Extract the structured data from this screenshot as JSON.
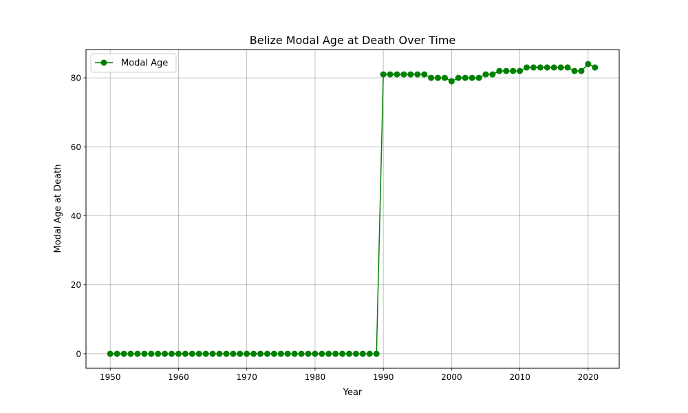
{
  "chart_data": {
    "type": "line",
    "title": "Belize Modal Age at Death Over Time",
    "xlabel": "Year",
    "ylabel": "Modal Age at Death",
    "xlim": [
      1946.45,
      2024.55
    ],
    "ylim": [
      -4.2,
      88.2
    ],
    "xticks": [
      1950,
      1960,
      1970,
      1980,
      1990,
      2000,
      2010,
      2020
    ],
    "yticks": [
      0,
      20,
      40,
      60,
      80
    ],
    "grid": true,
    "legend_position": "top-left",
    "series": [
      {
        "name": "Modal Age",
        "color": "#008000",
        "marker": "circle",
        "x": [
          1950,
          1951,
          1952,
          1953,
          1954,
          1955,
          1956,
          1957,
          1958,
          1959,
          1960,
          1961,
          1962,
          1963,
          1964,
          1965,
          1966,
          1967,
          1968,
          1969,
          1970,
          1971,
          1972,
          1973,
          1974,
          1975,
          1976,
          1977,
          1978,
          1979,
          1980,
          1981,
          1982,
          1983,
          1984,
          1985,
          1986,
          1987,
          1988,
          1989,
          1990,
          1991,
          1992,
          1993,
          1994,
          1995,
          1996,
          1997,
          1998,
          1999,
          2000,
          2001,
          2002,
          2003,
          2004,
          2005,
          2006,
          2007,
          2008,
          2009,
          2010,
          2011,
          2012,
          2013,
          2014,
          2015,
          2016,
          2017,
          2018,
          2019,
          2020,
          2021
        ],
        "y": [
          0,
          0,
          0,
          0,
          0,
          0,
          0,
          0,
          0,
          0,
          0,
          0,
          0,
          0,
          0,
          0,
          0,
          0,
          0,
          0,
          0,
          0,
          0,
          0,
          0,
          0,
          0,
          0,
          0,
          0,
          0,
          0,
          0,
          0,
          0,
          0,
          0,
          0,
          0,
          0,
          81,
          81,
          81,
          81,
          81,
          81,
          81,
          80,
          80,
          80,
          79,
          80,
          80,
          80,
          80,
          81,
          81,
          82,
          82,
          82,
          82,
          83,
          83,
          83,
          83,
          83,
          83,
          83,
          82,
          82,
          84,
          83
        ]
      }
    ]
  }
}
